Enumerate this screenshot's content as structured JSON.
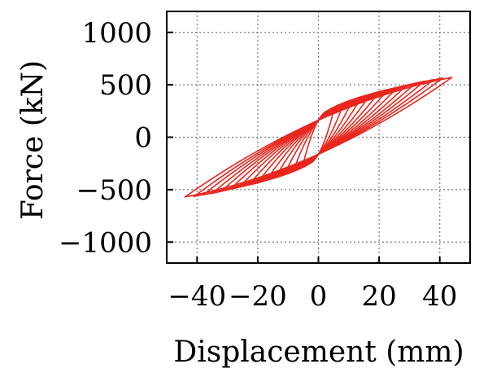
{
  "chart_data": {
    "type": "line",
    "title": "",
    "xlabel": "Displacement (mm)",
    "ylabel": "Force (kN)",
    "xlim": [
      -50,
      50
    ],
    "ylim": [
      -1200,
      1200
    ],
    "xticks": [
      -40,
      -20,
      0,
      20,
      40
    ],
    "yticks": [
      -1000,
      -500,
      0,
      500,
      1000
    ],
    "xtick_labels": [
      "−40",
      "−20",
      "0",
      "20",
      "40"
    ],
    "ytick_labels": [
      "−1000",
      "−500",
      "0",
      "500",
      "1000"
    ],
    "grid": true,
    "grid_style": "dotted",
    "legend": "none",
    "colors": {
      "series": "#e8271e",
      "axis": "#000000",
      "grid": "#7a7a7a"
    },
    "series": [
      {
        "values_description_free": true,
        "cycles": [
          {
            "amp_mm": 5,
            "peak_kN": 250
          },
          {
            "amp_mm": 8,
            "peak_kN": 300
          },
          {
            "amp_mm": 11,
            "peak_kN": 340
          },
          {
            "amp_mm": 14,
            "peak_kN": 375
          },
          {
            "amp_mm": 17,
            "peak_kN": 405
          },
          {
            "amp_mm": 20,
            "peak_kN": 430
          },
          {
            "amp_mm": 23,
            "peak_kN": 455
          },
          {
            "amp_mm": 26,
            "peak_kN": 475
          },
          {
            "amp_mm": 29,
            "peak_kN": 495
          },
          {
            "amp_mm": 32,
            "peak_kN": 515
          },
          {
            "amp_mm": 35,
            "peak_kN": 535
          },
          {
            "amp_mm": 38,
            "peak_kN": 550
          },
          {
            "amp_mm": 41,
            "peak_kN": 565
          },
          {
            "amp_mm": 44,
            "peak_kN": 570
          }
        ],
        "residual_kN": 180
      }
    ]
  }
}
